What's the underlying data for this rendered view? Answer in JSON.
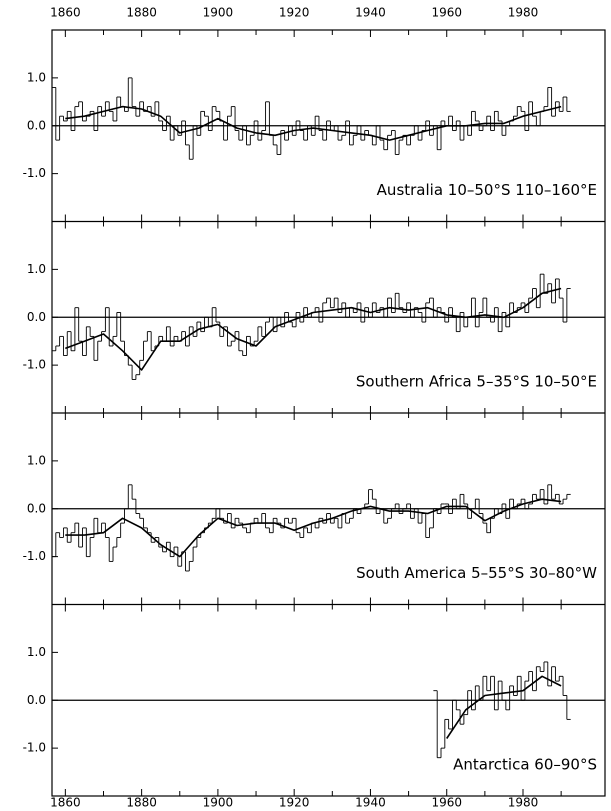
{
  "chart_data": {
    "type": "line",
    "color": "#000000",
    "xlim": [
      1856.5,
      2001.5
    ],
    "xticks": [
      1860,
      1880,
      1900,
      1920,
      1940,
      1960,
      1980
    ],
    "xminor": [
      1870,
      1890,
      1910,
      1930,
      1950,
      1970,
      1990
    ],
    "x": [
      1857,
      1858,
      1859,
      1860,
      1861,
      1862,
      1863,
      1864,
      1865,
      1866,
      1867,
      1868,
      1869,
      1870,
      1871,
      1872,
      1873,
      1874,
      1875,
      1876,
      1877,
      1878,
      1879,
      1880,
      1881,
      1882,
      1883,
      1884,
      1885,
      1886,
      1887,
      1888,
      1889,
      1890,
      1891,
      1892,
      1893,
      1894,
      1895,
      1896,
      1897,
      1898,
      1899,
      1900,
      1901,
      1902,
      1903,
      1904,
      1905,
      1906,
      1907,
      1908,
      1909,
      1910,
      1911,
      1912,
      1913,
      1914,
      1915,
      1916,
      1917,
      1918,
      1919,
      1920,
      1921,
      1922,
      1923,
      1924,
      1925,
      1926,
      1927,
      1928,
      1929,
      1930,
      1931,
      1932,
      1933,
      1934,
      1935,
      1936,
      1937,
      1938,
      1939,
      1940,
      1941,
      1942,
      1943,
      1944,
      1945,
      1946,
      1947,
      1948,
      1949,
      1950,
      1951,
      1952,
      1953,
      1954,
      1955,
      1956,
      1957,
      1958,
      1959,
      1960,
      1961,
      1962,
      1963,
      1964,
      1965,
      1966,
      1967,
      1968,
      1969,
      1970,
      1971,
      1972,
      1973,
      1974,
      1975,
      1976,
      1977,
      1978,
      1979,
      1980,
      1981,
      1982,
      1983,
      1984,
      1985,
      1986,
      1987,
      1988,
      1989,
      1990,
      1991,
      1992
    ],
    "smooth_x": [
      1860,
      1865,
      1870,
      1875,
      1880,
      1885,
      1890,
      1895,
      1900,
      1905,
      1910,
      1915,
      1920,
      1925,
      1930,
      1935,
      1940,
      1945,
      1950,
      1955,
      1960,
      1965,
      1970,
      1975,
      1980,
      1985,
      1990
    ],
    "panels": [
      {
        "label": "Australia 10–50°S 110–160°E",
        "ylim": [
          -2,
          2
        ],
        "baseline": 0,
        "yticks": [
          {
            "value": -1,
            "label": "-1.0"
          },
          {
            "value": 0,
            "label": "0.0"
          },
          {
            "value": 1,
            "label": "1.0"
          }
        ],
        "annual": [
          0.8,
          -0.3,
          0.2,
          0.1,
          0.3,
          -0.1,
          0.4,
          0.5,
          0.1,
          0.2,
          0.3,
          -0.1,
          0.4,
          0.2,
          0.5,
          0.3,
          0.1,
          0.6,
          0.4,
          0.3,
          1.0,
          0.4,
          0.2,
          0.5,
          0.3,
          0.4,
          0.2,
          0.5,
          0.1,
          -0.1,
          0.2,
          -0.3,
          0.0,
          -0.2,
          0.1,
          -0.4,
          -0.7,
          0.0,
          -0.2,
          0.3,
          0.2,
          -0.1,
          0.4,
          0.3,
          0.1,
          -0.3,
          0.2,
          0.4,
          -0.1,
          -0.3,
          0.0,
          -0.4,
          -0.2,
          0.1,
          -0.3,
          -0.1,
          0.5,
          -0.2,
          -0.4,
          -0.6,
          -0.1,
          -0.3,
          0.0,
          -0.2,
          0.1,
          -0.1,
          -0.3,
          0.0,
          -0.2,
          0.2,
          -0.1,
          -0.3,
          0.1,
          -0.1,
          0.0,
          -0.3,
          -0.2,
          0.1,
          -0.4,
          -0.2,
          0.0,
          -0.3,
          -0.1,
          -0.2,
          -0.4,
          0.0,
          -0.3,
          -0.5,
          -0.2,
          -0.1,
          -0.6,
          -0.3,
          -0.2,
          -0.4,
          -0.2,
          0.0,
          -0.3,
          -0.1,
          0.1,
          -0.2,
          0.0,
          -0.5,
          0.1,
          0.0,
          0.2,
          -0.1,
          0.1,
          -0.3,
          0.0,
          -0.2,
          0.3,
          0.1,
          -0.1,
          0.0,
          0.2,
          -0.1,
          0.3,
          0.1,
          -0.2,
          0.0,
          0.1,
          0.2,
          0.4,
          0.3,
          -0.1,
          0.5,
          0.2,
          0.0,
          0.3,
          0.4,
          0.8,
          0.2,
          0.5,
          0.3,
          0.6,
          0.3
        ],
        "smoothed": [
          0.15,
          0.2,
          0.3,
          0.4,
          0.35,
          0.2,
          -0.15,
          -0.05,
          0.15,
          -0.05,
          -0.15,
          -0.2,
          -0.1,
          -0.05,
          -0.1,
          -0.15,
          -0.2,
          -0.3,
          -0.2,
          -0.1,
          0.0,
          0.0,
          0.05,
          0.05,
          0.2,
          0.3,
          0.4
        ]
      },
      {
        "label": "Southern Africa 5–35°S 10–50°E",
        "ylim": [
          -2,
          2
        ],
        "baseline": 0,
        "yticks": [
          {
            "value": -1,
            "label": "-1.0"
          },
          {
            "value": 0,
            "label": "0.0"
          },
          {
            "value": 1,
            "label": "1.0"
          }
        ],
        "annual": [
          -0.7,
          -0.6,
          -0.4,
          -0.8,
          -0.3,
          -0.7,
          0.2,
          -0.5,
          -0.8,
          -0.2,
          -0.4,
          -0.9,
          -0.5,
          -0.3,
          0.2,
          -0.6,
          -0.4,
          0.1,
          -0.5,
          -0.8,
          -1.0,
          -1.3,
          -1.2,
          -0.9,
          -0.5,
          -0.3,
          -0.7,
          -0.6,
          -0.4,
          -0.5,
          -0.2,
          -0.6,
          -0.4,
          -0.5,
          -0.3,
          -0.6,
          -0.2,
          -0.4,
          -0.1,
          -0.3,
          0.0,
          -0.2,
          0.2,
          -0.1,
          -0.4,
          -0.2,
          -0.6,
          -0.5,
          -0.3,
          -0.7,
          -0.8,
          -0.4,
          -0.6,
          -0.5,
          -0.2,
          -0.4,
          -0.1,
          0.0,
          -0.3,
          0.0,
          -0.2,
          0.1,
          -0.1,
          -0.2,
          0.1,
          -0.1,
          0.2,
          0.0,
          0.1,
          0.2,
          -0.1,
          0.3,
          0.4,
          0.2,
          0.4,
          0.1,
          0.3,
          0.0,
          0.2,
          0.1,
          0.3,
          -0.1,
          0.2,
          0.0,
          0.3,
          0.1,
          0.2,
          0.0,
          0.4,
          0.1,
          0.5,
          0.2,
          0.1,
          0.3,
          0.0,
          0.2,
          0.1,
          -0.1,
          0.3,
          0.4,
          0.0,
          0.2,
          0.1,
          -0.1,
          0.2,
          0.0,
          -0.3,
          0.1,
          -0.2,
          0.0,
          0.4,
          -0.2,
          0.1,
          0.4,
          0.0,
          -0.1,
          0.2,
          -0.3,
          0.1,
          -0.2,
          0.3,
          0.1,
          0.2,
          0.3,
          0.1,
          0.4,
          0.6,
          0.2,
          0.9,
          0.5,
          0.7,
          0.3,
          0.8,
          0.4,
          -0.1,
          0.6
        ],
        "smoothed": [
          -0.65,
          -0.5,
          -0.35,
          -0.7,
          -1.1,
          -0.5,
          -0.5,
          -0.25,
          -0.15,
          -0.45,
          -0.6,
          -0.2,
          -0.05,
          0.1,
          0.15,
          0.2,
          0.1,
          0.2,
          0.15,
          0.2,
          0.05,
          0.0,
          0.05,
          0.0,
          0.2,
          0.5,
          0.6
        ]
      },
      {
        "label": "South America 5–55°S 30–80°W",
        "ylim": [
          -2,
          2
        ],
        "baseline": 0,
        "yticks": [
          {
            "value": -1,
            "label": "-1.0"
          },
          {
            "value": 0,
            "label": "0.0"
          },
          {
            "value": 1,
            "label": "1.0"
          }
        ],
        "annual": [
          -1.0,
          -0.5,
          -0.6,
          -0.4,
          -0.7,
          -0.5,
          -0.3,
          -0.8,
          -0.4,
          -1.0,
          -0.6,
          -0.2,
          -0.5,
          -0.3,
          -0.6,
          -1.1,
          -0.8,
          -0.6,
          -0.3,
          0.0,
          0.5,
          0.2,
          -0.1,
          -0.2,
          -0.4,
          -0.5,
          -0.7,
          -0.6,
          -0.8,
          -0.9,
          -0.7,
          -1.0,
          -0.8,
          -1.2,
          -0.9,
          -1.3,
          -1.1,
          -0.8,
          -0.6,
          -0.5,
          -0.4,
          -0.3,
          -0.2,
          0.0,
          -0.2,
          -0.3,
          -0.1,
          -0.4,
          -0.2,
          -0.3,
          -0.4,
          -0.5,
          -0.3,
          -0.2,
          -0.3,
          -0.1,
          -0.4,
          -0.5,
          -0.2,
          -0.3,
          -0.4,
          -0.2,
          -0.3,
          -0.2,
          -0.5,
          -0.6,
          -0.4,
          -0.5,
          -0.3,
          -0.4,
          -0.2,
          -0.3,
          -0.1,
          -0.3,
          -0.2,
          -0.4,
          -0.1,
          -0.3,
          -0.2,
          0.0,
          -0.1,
          0.0,
          0.1,
          0.4,
          0.2,
          -0.1,
          0.0,
          -0.3,
          -0.2,
          0.0,
          0.1,
          -0.1,
          0.0,
          0.1,
          -0.2,
          0.0,
          -0.3,
          -0.1,
          -0.6,
          -0.4,
          0.0,
          -0.1,
          0.1,
          0.1,
          -0.1,
          0.2,
          0.0,
          0.3,
          0.1,
          -0.2,
          0.0,
          0.2,
          -0.1,
          -0.3,
          -0.5,
          -0.2,
          0.0,
          -0.1,
          0.1,
          -0.2,
          0.2,
          0.0,
          0.1,
          0.2,
          0.0,
          0.1,
          0.3,
          0.2,
          0.4,
          0.1,
          0.5,
          0.2,
          0.3,
          0.1,
          0.2,
          0.3
        ],
        "smoothed": [
          -0.55,
          -0.55,
          -0.5,
          -0.2,
          -0.4,
          -0.75,
          -1.0,
          -0.55,
          -0.2,
          -0.35,
          -0.3,
          -0.3,
          -0.45,
          -0.3,
          -0.2,
          -0.05,
          0.05,
          -0.05,
          -0.05,
          -0.1,
          0.05,
          0.05,
          -0.25,
          -0.05,
          0.1,
          0.2,
          0.15
        ]
      },
      {
        "label": "Antarctica 60–90°S",
        "ylim": [
          -2,
          2
        ],
        "baseline": 0,
        "yticks": [
          {
            "value": -1,
            "label": "-1.0"
          },
          {
            "value": 0,
            "label": "0.0"
          },
          {
            "value": 1,
            "label": "1.0"
          }
        ],
        "annual": [
          null,
          null,
          null,
          null,
          null,
          null,
          null,
          null,
          null,
          null,
          null,
          null,
          null,
          null,
          null,
          null,
          null,
          null,
          null,
          null,
          null,
          null,
          null,
          null,
          null,
          null,
          null,
          null,
          null,
          null,
          null,
          null,
          null,
          null,
          null,
          null,
          null,
          null,
          null,
          null,
          null,
          null,
          null,
          null,
          null,
          null,
          null,
          null,
          null,
          null,
          null,
          null,
          null,
          null,
          null,
          null,
          null,
          null,
          null,
          null,
          null,
          null,
          null,
          null,
          null,
          null,
          null,
          null,
          null,
          null,
          null,
          null,
          null,
          null,
          null,
          null,
          null,
          null,
          null,
          null,
          null,
          null,
          null,
          null,
          null,
          null,
          null,
          null,
          null,
          null,
          null,
          null,
          null,
          null,
          null,
          null,
          null,
          null,
          null,
          null,
          0.2,
          -1.2,
          -1.0,
          -0.4,
          -0.6,
          0.0,
          -0.2,
          -0.5,
          -0.3,
          0.2,
          -0.2,
          0.3,
          0.0,
          0.5,
          0.2,
          0.5,
          -0.2,
          0.4,
          0.0,
          -0.2,
          0.3,
          0.1,
          0.5,
          0.0,
          0.4,
          0.6,
          0.2,
          0.7,
          0.6,
          0.8,
          0.3,
          0.7,
          0.4,
          0.5,
          0.1,
          -0.4
        ],
        "smoothed": [
          null,
          null,
          null,
          null,
          null,
          null,
          null,
          null,
          null,
          null,
          null,
          null,
          null,
          null,
          null,
          null,
          null,
          null,
          null,
          null,
          -0.8,
          -0.2,
          0.1,
          0.15,
          0.2,
          0.5,
          0.3
        ]
      }
    ]
  }
}
